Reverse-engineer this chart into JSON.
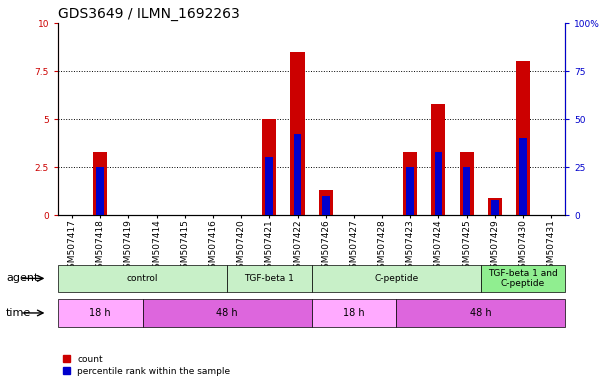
{
  "title": "GDS3649 / ILMN_1692263",
  "samples": [
    "GSM507417",
    "GSM507418",
    "GSM507419",
    "GSM507414",
    "GSM507415",
    "GSM507416",
    "GSM507420",
    "GSM507421",
    "GSM507422",
    "GSM507426",
    "GSM507427",
    "GSM507428",
    "GSM507423",
    "GSM507424",
    "GSM507425",
    "GSM507429",
    "GSM507430",
    "GSM507431"
  ],
  "count_values": [
    0.0,
    3.3,
    0.0,
    0.0,
    0.0,
    0.0,
    0.0,
    5.0,
    8.5,
    1.3,
    0.0,
    0.0,
    3.3,
    5.8,
    3.3,
    0.9,
    8.0,
    0.0
  ],
  "percentile_values": [
    0.0,
    25.0,
    0.0,
    0.0,
    0.0,
    0.0,
    0.0,
    30.0,
    42.0,
    10.0,
    0.0,
    0.0,
    25.0,
    33.0,
    25.0,
    8.0,
    40.0,
    0.0
  ],
  "ylim_left": [
    0,
    10
  ],
  "ylim_right": [
    0,
    100
  ],
  "yticks_left": [
    0,
    2.5,
    5.0,
    7.5,
    10
  ],
  "yticks_right": [
    0,
    25,
    50,
    75,
    100
  ],
  "agent_groups": [
    {
      "label": "control",
      "start": 0,
      "end": 6,
      "color": "#c8f0c8"
    },
    {
      "label": "TGF-beta 1",
      "start": 6,
      "end": 9,
      "color": "#c8f0c8"
    },
    {
      "label": "C-peptide",
      "start": 9,
      "end": 15,
      "color": "#c8f0c8"
    },
    {
      "label": "TGF-beta 1 and\nC-peptide",
      "start": 15,
      "end": 18,
      "color": "#90ee90"
    }
  ],
  "time_groups": [
    {
      "label": "18 h",
      "start": 0,
      "end": 3,
      "color": "#ffaaff"
    },
    {
      "label": "48 h",
      "start": 3,
      "end": 9,
      "color": "#dd66dd"
    },
    {
      "label": "18 h",
      "start": 9,
      "end": 12,
      "color": "#ffaaff"
    },
    {
      "label": "48 h",
      "start": 12,
      "end": 18,
      "color": "#dd66dd"
    }
  ],
  "count_color": "#cc0000",
  "percentile_color": "#0000cc",
  "bar_width": 0.5,
  "background_color": "#ffffff",
  "title_fontsize": 10,
  "tick_fontsize": 6.5,
  "label_fontsize": 8
}
